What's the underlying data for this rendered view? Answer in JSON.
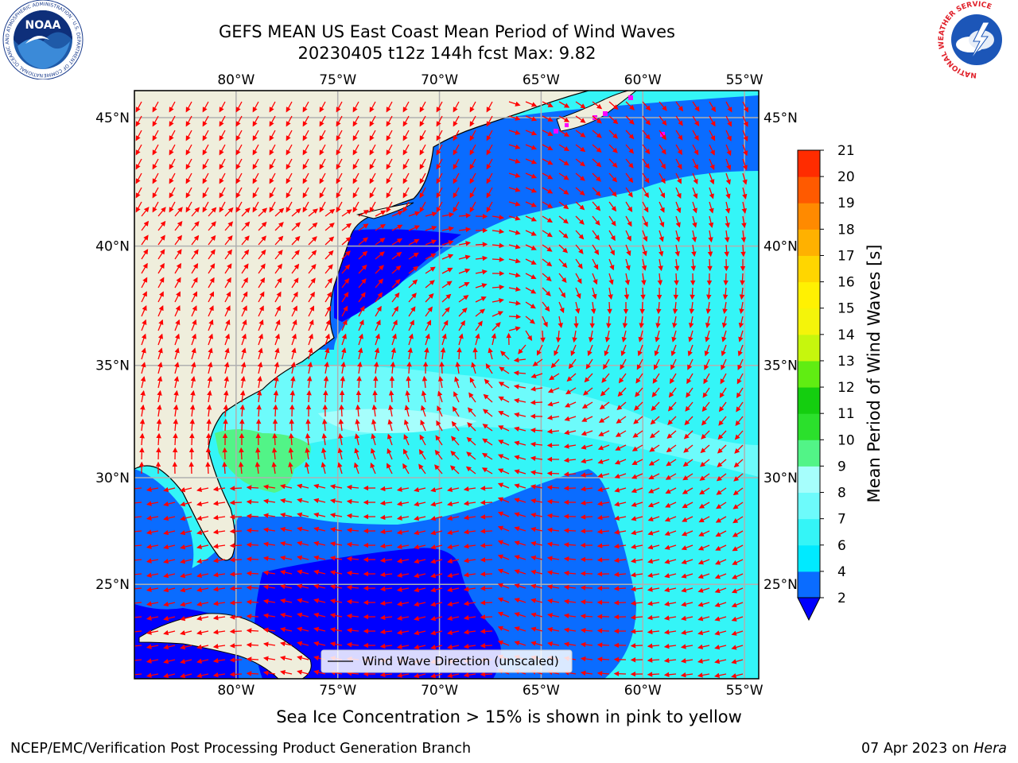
{
  "title": {
    "line1": "GEFS MEAN US East Coast Mean Period of Wind Waves",
    "line2": "20230405 t12z 144h fcst   Max: 9.82"
  },
  "map": {
    "lon_labels": [
      "80°W",
      "75°W",
      "70°W",
      "65°W",
      "60°W",
      "55°W"
    ],
    "lon_values": [
      -80,
      -75,
      -70,
      -65,
      -60,
      -55
    ],
    "lat_labels": [
      "45°N",
      "40°N",
      "35°N",
      "30°N",
      "25°N"
    ],
    "lat_values": [
      45,
      40,
      35,
      30,
      25
    ],
    "extent": {
      "lon": [
        -85,
        -54.3
      ],
      "lat": [
        20.4,
        46
      ]
    },
    "legend_label": "Wind Wave Direction (unscaled)",
    "land_color": "#efeedc",
    "vector_color": "#ff0000"
  },
  "colorbar": {
    "label": "Mean Period of Wind Waves [s]",
    "tick_labels": [
      "2",
      "4",
      "6",
      "7",
      "8",
      "9",
      "10",
      "11",
      "12",
      "13",
      "14",
      "15",
      "16",
      "17",
      "18",
      "19",
      "20",
      "21"
    ],
    "colors": [
      "#0a6cff",
      "#00eaff",
      "#34f5f7",
      "#6dfbfb",
      "#a6fefc",
      "#52f487",
      "#2be02c",
      "#14ce0f",
      "#60ed12",
      "#c6f60d",
      "#f4f40a",
      "#fff102",
      "#ffd600",
      "#ffb100",
      "#ff8a00",
      "#ff5a00",
      "#ff2c00"
    ],
    "under_color": "#0000ff",
    "extend": "min"
  },
  "footer": {
    "ice_note": "Sea Ice Concentration > 15% is shown in pink to yellow",
    "credit_left": "NCEP/EMC/Verification Post Processing Product Generation Branch",
    "credit_date": "07 Apr 2023 on ",
    "credit_machine": "Hera"
  },
  "logos": {
    "noaa_text": "NOAA",
    "noaa_ring": "NATIONAL OCEANIC AND ATMOSPHERIC ADMINISTRATION · U.S. DEPARTMENT OF COMMERCE",
    "nws_ring": "NATIONAL WEATHER SERVICE"
  }
}
